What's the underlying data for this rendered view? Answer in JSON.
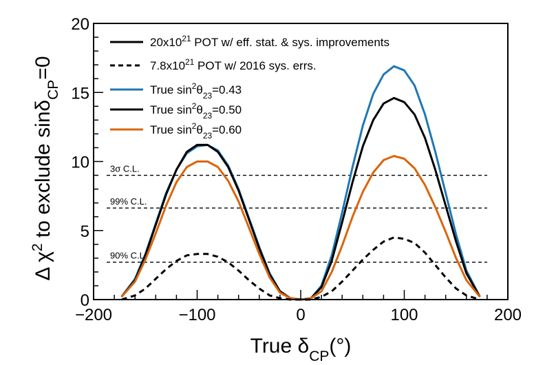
{
  "chart_data": {
    "type": "line",
    "xlabel": "True δCP(°)",
    "ylabel": "Δ χ2 to exclude sinδCP=0",
    "xlim": [
      -200,
      200
    ],
    "ylim": [
      0,
      20
    ],
    "x_ticks": [
      -200,
      -100,
      0,
      100,
      200
    ],
    "y_ticks": [
      0,
      5,
      10,
      15,
      20
    ],
    "x_tick_labels": [
      "−200",
      "−100",
      "0",
      "100",
      "200"
    ],
    "y_tick_labels": [
      "0",
      "5",
      "10",
      "15",
      "20"
    ],
    "x": [
      -173,
      -160,
      -150,
      -140,
      -130,
      -120,
      -110,
      -100,
      -90,
      -80,
      -70,
      -60,
      -50,
      -40,
      -30,
      -20,
      -10,
      0,
      10,
      20,
      30,
      40,
      50,
      60,
      70,
      80,
      90,
      100,
      110,
      120,
      130,
      140,
      150,
      160,
      173
    ],
    "series": [
      {
        "name": "True sin²θ23=0.43",
        "color": "#1f77b4",
        "style": "solid",
        "values": [
          0.2,
          1.5,
          3.3,
          5.5,
          7.7,
          9.4,
          10.6,
          11.1,
          11.2,
          10.8,
          9.7,
          8.0,
          5.9,
          3.8,
          1.9,
          0.6,
          0.1,
          0.0,
          0.1,
          1.0,
          3.2,
          6.3,
          9.6,
          12.6,
          14.9,
          16.3,
          16.9,
          16.6,
          15.5,
          13.4,
          10.7,
          7.7,
          4.7,
          2.1,
          0.2
        ]
      },
      {
        "name": "True sin²θ23=0.50",
        "color": "#000000",
        "style": "solid",
        "values": [
          0.2,
          1.4,
          3.2,
          5.4,
          7.6,
          9.4,
          10.7,
          11.2,
          11.2,
          10.7,
          9.6,
          7.9,
          5.8,
          3.7,
          1.8,
          0.6,
          0.1,
          0.0,
          0.1,
          0.9,
          2.8,
          5.6,
          8.5,
          11.1,
          13.0,
          14.2,
          14.6,
          14.3,
          13.4,
          11.7,
          9.4,
          6.8,
          4.2,
          1.9,
          0.2
        ]
      },
      {
        "name": "True sin²θ23=0.60",
        "color": "#d9650c",
        "style": "solid",
        "values": [
          0.2,
          1.3,
          2.9,
          4.8,
          6.8,
          8.5,
          9.6,
          10.0,
          10.0,
          9.6,
          8.6,
          7.1,
          5.2,
          3.3,
          1.6,
          0.5,
          0.1,
          0.0,
          0.1,
          0.6,
          2.0,
          3.9,
          6.0,
          7.8,
          9.2,
          10.1,
          10.4,
          10.2,
          9.5,
          8.3,
          6.7,
          4.9,
          3.0,
          1.4,
          0.2
        ]
      },
      {
        "name": "",
        "color": "#000000",
        "style": "dashed",
        "values": [
          0.0,
          0.3,
          0.8,
          1.5,
          2.2,
          2.8,
          3.2,
          3.3,
          3.3,
          3.1,
          2.7,
          2.1,
          1.4,
          0.8,
          0.3,
          0.1,
          0.0,
          0.0,
          0.0,
          0.2,
          0.6,
          1.3,
          2.1,
          2.9,
          3.6,
          4.2,
          4.5,
          4.4,
          4.1,
          3.4,
          2.5,
          1.6,
          0.8,
          0.3,
          0.0
        ]
      }
    ],
    "cl_lines": [
      {
        "label": "3σ C.L.",
        "y": 9.0
      },
      {
        "label": "99% C.L.",
        "y": 6.63
      },
      {
        "label": "90% C.L.",
        "y": 2.71
      }
    ],
    "legend": {
      "placement": "top-left",
      "entries": [
        {
          "label": "20x10²¹ POT w/ eff. stat. & sys. improvements",
          "style": "solid",
          "color": "#000000"
        },
        {
          "label": "7.8x10²¹ POT w/ 2016 sys. errs.",
          "style": "dashed",
          "color": "#000000"
        },
        {
          "label": "True sin²θ23=0.43",
          "style": "solid",
          "color": "#1f77b4"
        },
        {
          "label": "True sin²θ23=0.50",
          "style": "solid",
          "color": "#000000"
        },
        {
          "label": "True sin²θ23=0.60",
          "style": "solid",
          "color": "#d9650c"
        }
      ]
    },
    "grid": false
  }
}
